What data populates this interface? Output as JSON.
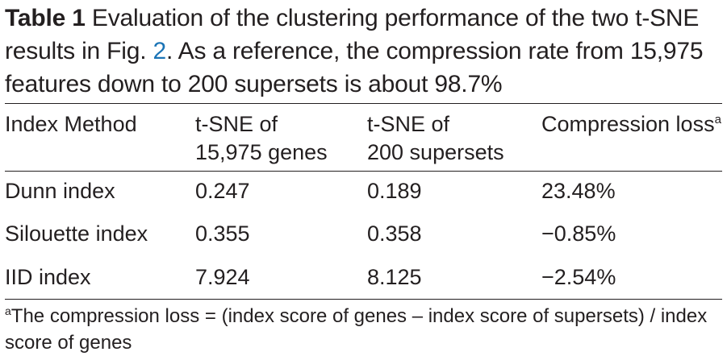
{
  "caption": {
    "label": "Table 1",
    "text_before_ref": " Evaluation of the clustering performance of the two t-SNE results in Fig. ",
    "figure_ref": "2",
    "text_after_ref": ". As a reference, the compression rate from 15,975 features down to 200 supersets is about 98.7%"
  },
  "table": {
    "headers": {
      "col1": "Index Method",
      "col2_line1": "t-SNE of",
      "col2_line2": "15,975 genes",
      "col3_line1": "t-SNE of",
      "col3_line2": "200 supersets",
      "col4": "Compression loss",
      "col4_marker": "a"
    },
    "rows": [
      {
        "index": "Dunn index",
        "genes": "0.247",
        "supersets": "0.189",
        "loss": "23.48%"
      },
      {
        "index": "Silouette index",
        "genes": "0.355",
        "supersets": "0.358",
        "loss": "−0.85%"
      },
      {
        "index": "IID index",
        "genes": "7.924",
        "supersets": "8.125",
        "loss": "−2.54%"
      }
    ]
  },
  "footnote": {
    "marker": "a",
    "text": "The compression loss = (index score of genes – index score of supersets) / index score of genes"
  }
}
